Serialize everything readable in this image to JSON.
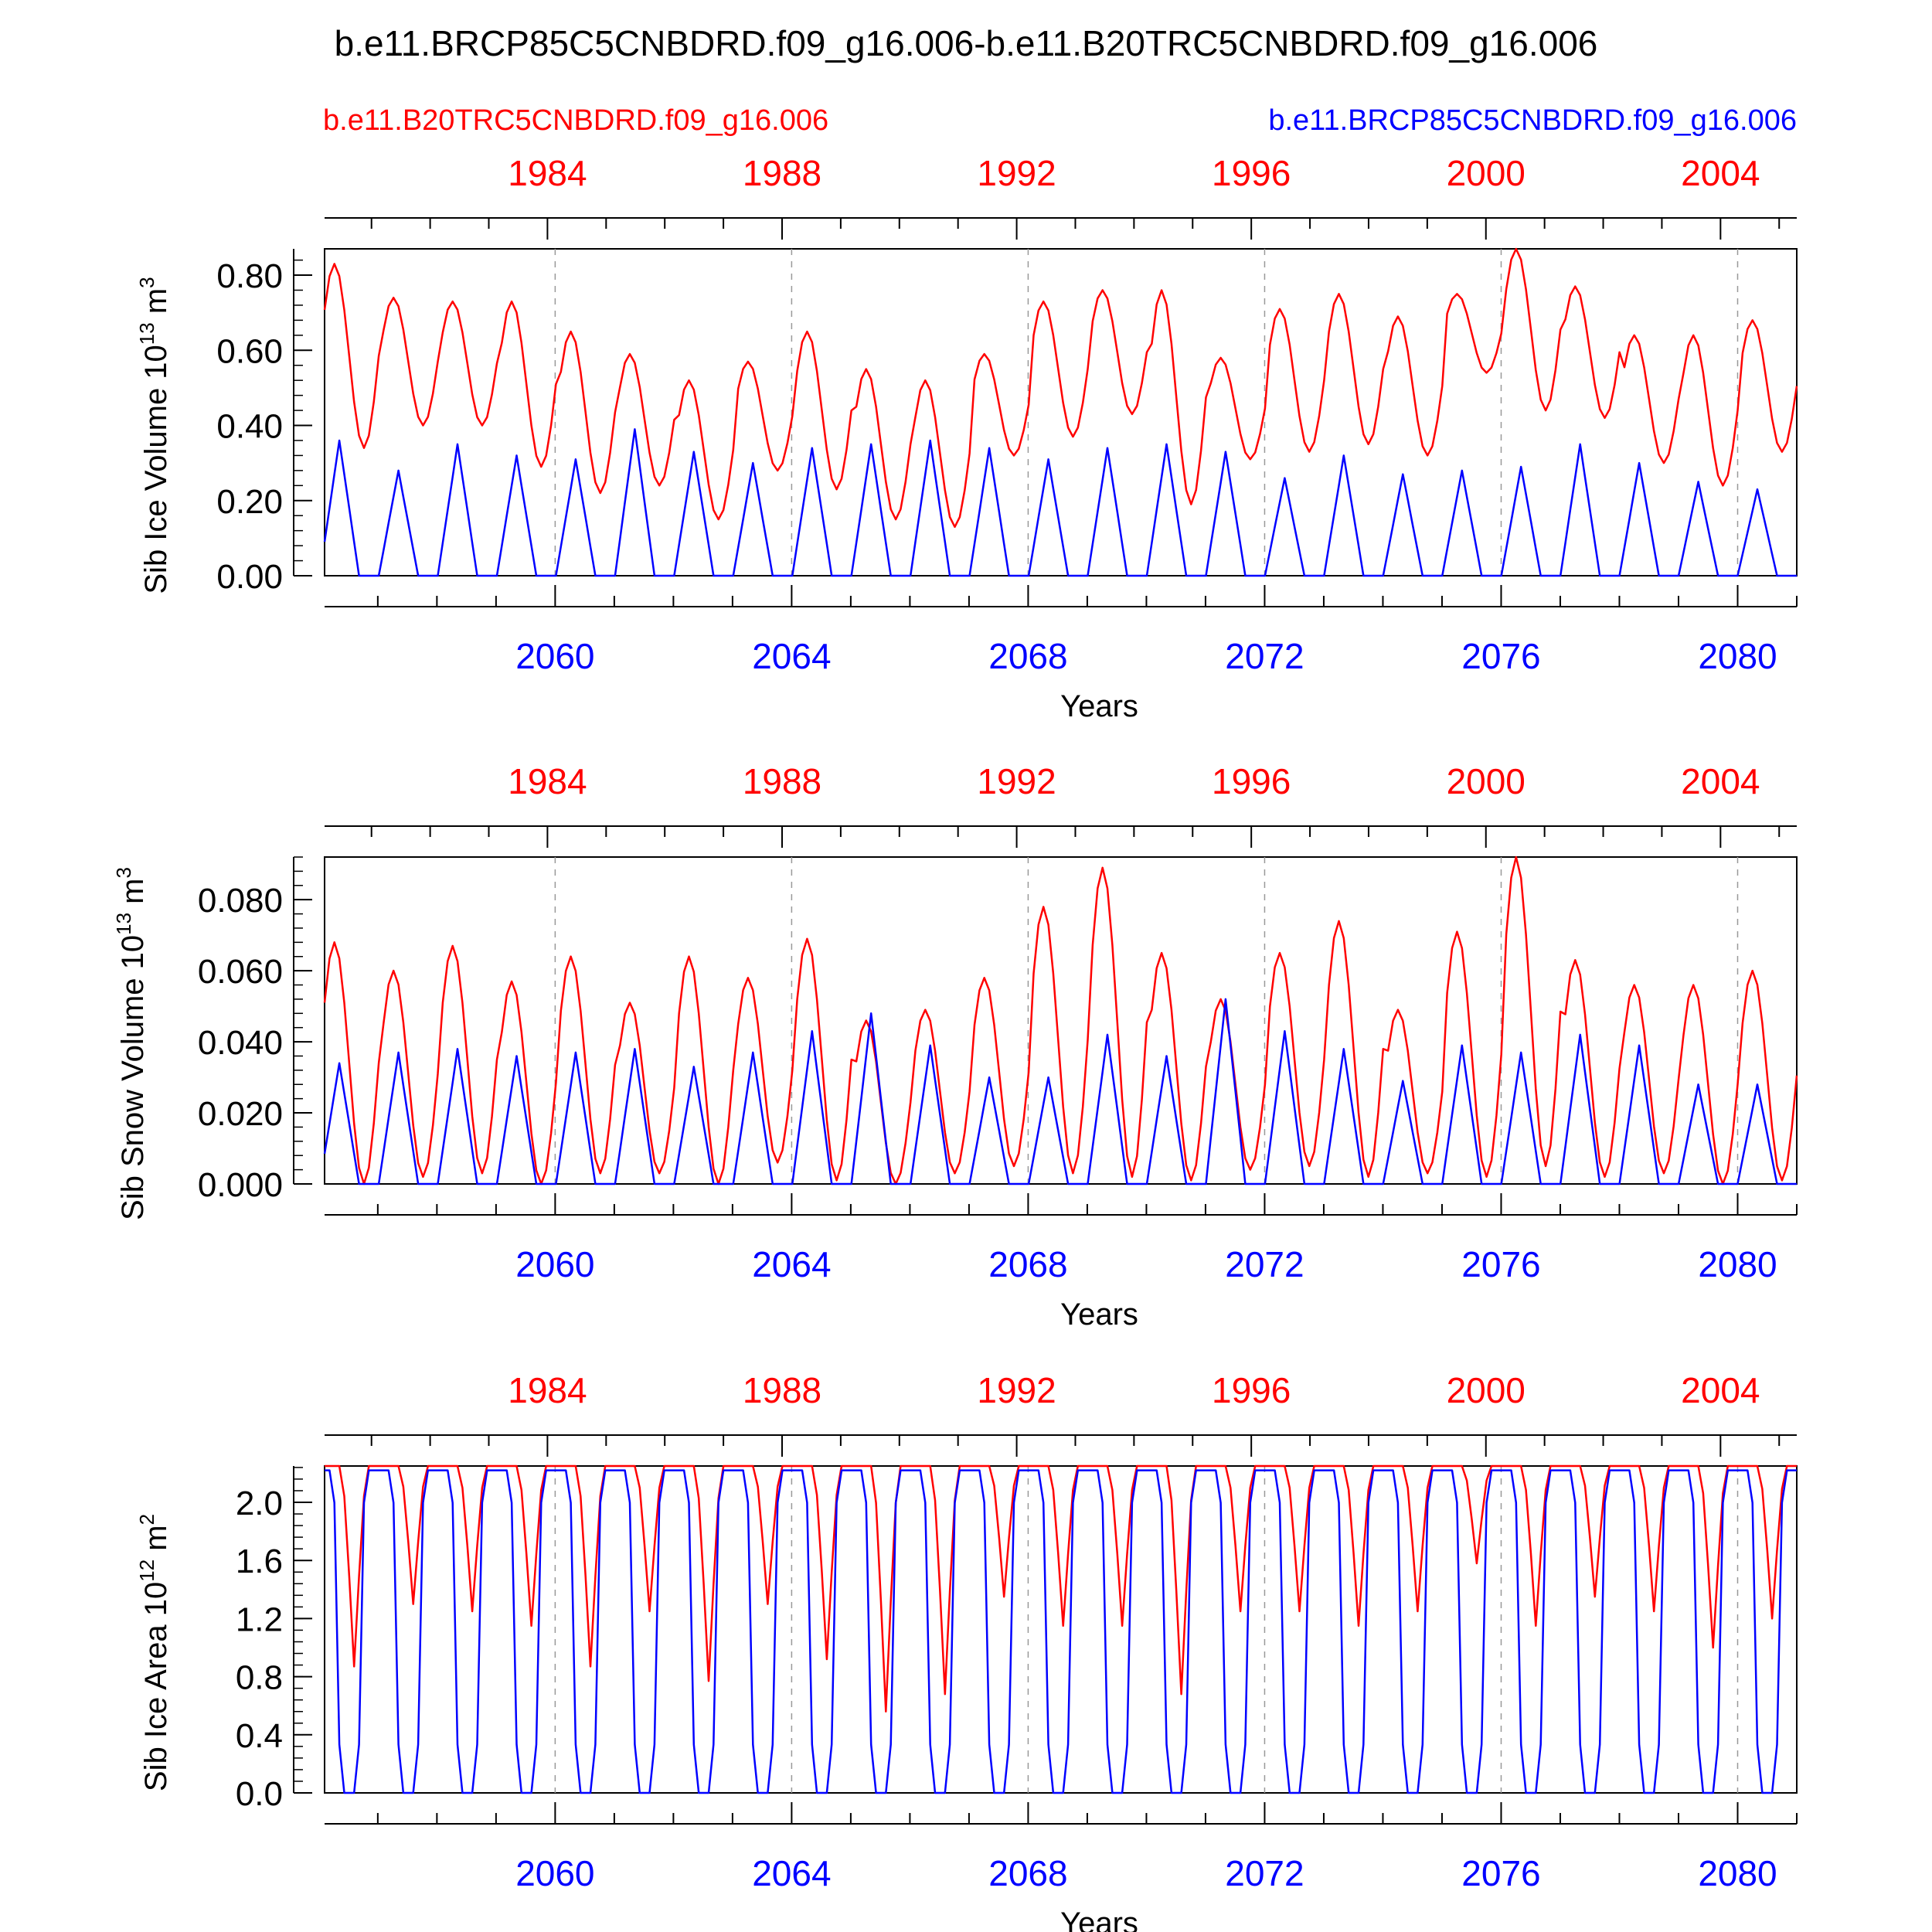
{
  "title": "b.e11.BRCP85C5CNBDRD.f09_g16.006-b.e11.B20TRC5CNBDRD.f09_g16.006",
  "legend": {
    "red_label": "b.e11.B20TRC5CNBDRD.f09_g16.006",
    "blue_label": "b.e11.BRCP85C5CNBDRD.f09_g16.006"
  },
  "colors": {
    "red": "#ff0000",
    "blue": "#0000ff",
    "axis": "#000000",
    "grid": "#999999"
  },
  "chart_data": [
    {
      "type": "line",
      "ylabel_main": "Sib Ice Volume 10",
      "ylabel_exp": "13",
      "ylabel_unit": " m",
      "ylabel_unit_exp": "3",
      "xlabel": "Years",
      "ylim": [
        0,
        0.87
      ],
      "yticks": [
        "0.00",
        "0.20",
        "0.40",
        "0.60",
        "0.80"
      ],
      "ytick_values": [
        0,
        0.2,
        0.4,
        0.6,
        0.8
      ],
      "top_axis": {
        "range": [
          1980.2,
          2005.3
        ],
        "labels": [
          "1984",
          "1988",
          "1992",
          "1996",
          "2000",
          "2004"
        ],
        "values": [
          1984,
          1988,
          1992,
          1996,
          2000,
          2004
        ]
      },
      "bottom_axis": {
        "range": [
          2056.1,
          2081.0
        ],
        "labels": [
          "2060",
          "2064",
          "2068",
          "2072",
          "2076",
          "2080"
        ],
        "values": [
          2060,
          2064,
          2068,
          2072,
          2076,
          2080
        ]
      },
      "series": [
        {
          "name": "b.e11.B20TRC5CNBDRD.f09_g16.006",
          "color": "red",
          "annual_max": [
            0.83,
            0.74,
            0.73,
            0.73,
            0.65,
            0.59,
            0.52,
            0.57,
            0.65,
            0.55,
            0.52,
            0.59,
            0.73,
            0.76,
            0.76,
            0.58,
            0.71,
            0.75,
            0.69,
            0.75,
            0.87,
            0.77,
            0.64,
            0.64,
            0.68
          ],
          "annual_min": [
            0.34,
            0.4,
            0.4,
            0.29,
            0.22,
            0.24,
            0.15,
            0.28,
            0.23,
            0.15,
            0.13,
            0.32,
            0.37,
            0.43,
            0.19,
            0.31,
            0.33,
            0.35,
            0.32,
            0.54,
            0.44,
            0.42,
            0.3,
            0.24,
            0.33
          ]
        },
        {
          "name": "b.e11.BRCP85C5CNBDRD.f09_g16.006",
          "color": "blue",
          "annual_max": [
            0.36,
            0.28,
            0.35,
            0.32,
            0.31,
            0.39,
            0.33,
            0.3,
            0.34,
            0.35,
            0.36,
            0.34,
            0.31,
            0.34,
            0.35,
            0.33,
            0.26,
            0.32,
            0.27,
            0.28,
            0.29,
            0.35,
            0.3,
            0.25,
            0.23
          ],
          "annual_min": [
            0,
            0,
            0,
            0,
            0,
            0,
            0,
            0,
            0,
            0,
            0,
            0,
            0,
            0,
            0,
            0,
            0,
            0,
            0,
            0,
            0,
            0,
            0,
            0,
            0
          ]
        }
      ]
    },
    {
      "type": "line",
      "ylabel_main": "Sib Snow Volume 10",
      "ylabel_exp": "13",
      "ylabel_unit": " m",
      "ylabel_unit_exp": "3",
      "xlabel": "Years",
      "ylim": [
        0,
        0.092
      ],
      "yticks": [
        "0.000",
        "0.020",
        "0.040",
        "0.060",
        "0.080"
      ],
      "ytick_values": [
        0,
        0.02,
        0.04,
        0.06,
        0.08
      ],
      "top_axis": {
        "range": [
          1980.2,
          2005.3
        ],
        "labels": [
          "1984",
          "1988",
          "1992",
          "1996",
          "2000",
          "2004"
        ],
        "values": [
          1984,
          1988,
          1992,
          1996,
          2000,
          2004
        ]
      },
      "bottom_axis": {
        "range": [
          2056.1,
          2081.0
        ],
        "labels": [
          "2060",
          "2064",
          "2068",
          "2072",
          "2076",
          "2080"
        ],
        "values": [
          2060,
          2064,
          2068,
          2072,
          2076,
          2080
        ]
      },
      "series": [
        {
          "name": "b.e11.B20TRC5CNBDRD.f09_g16.006",
          "color": "red",
          "annual_max": [
            0.068,
            0.06,
            0.067,
            0.057,
            0.064,
            0.051,
            0.064,
            0.058,
            0.069,
            0.046,
            0.049,
            0.058,
            0.078,
            0.089,
            0.065,
            0.052,
            0.065,
            0.074,
            0.049,
            0.071,
            0.092,
            0.063,
            0.056,
            0.056,
            0.06
          ],
          "annual_min": [
            0.0,
            0.002,
            0.003,
            0.0,
            0.003,
            0.003,
            0.0,
            0.006,
            0.001,
            0.0,
            0.003,
            0.005,
            0.003,
            0.002,
            0.001,
            0.004,
            0.005,
            0.002,
            0.003,
            0.002,
            0.005,
            0.002,
            0.003,
            0.0,
            0.001
          ]
        },
        {
          "name": "b.e11.BRCP85C5CNBDRD.f09_g16.006",
          "color": "blue",
          "annual_max": [
            0.034,
            0.037,
            0.038,
            0.036,
            0.037,
            0.038,
            0.033,
            0.037,
            0.043,
            0.048,
            0.039,
            0.03,
            0.03,
            0.042,
            0.036,
            0.052,
            0.043,
            0.038,
            0.029,
            0.039,
            0.037,
            0.042,
            0.039,
            0.028,
            0.028
          ],
          "annual_min": [
            0,
            0,
            0,
            0,
            0,
            0,
            0,
            0,
            0,
            0,
            0,
            0,
            0,
            0,
            0,
            0,
            0,
            0,
            0,
            0,
            0,
            0,
            0,
            0,
            0
          ]
        }
      ]
    },
    {
      "type": "line",
      "ylabel_main": "Sib Ice Area 10",
      "ylabel_exp": "12",
      "ylabel_unit": " m",
      "ylabel_unit_exp": "2",
      "xlabel": "Years",
      "ylim": [
        0,
        2.25
      ],
      "yticks": [
        "0.0",
        "0.4",
        "0.8",
        "1.2",
        "1.6",
        "2.0"
      ],
      "ytick_values": [
        0,
        0.4,
        0.8,
        1.2,
        1.6,
        2.0
      ],
      "top_axis": {
        "range": [
          1980.2,
          2005.3
        ],
        "labels": [
          "1984",
          "1988",
          "1992",
          "1996",
          "2000",
          "2004"
        ],
        "values": [
          1984,
          1988,
          1992,
          1996,
          2000,
          2004
        ]
      },
      "bottom_axis": {
        "range": [
          2056.1,
          2081.0
        ],
        "labels": [
          "2060",
          "2064",
          "2068",
          "2072",
          "2076",
          "2080"
        ],
        "values": [
          2060,
          2064,
          2068,
          2072,
          2076,
          2080
        ]
      },
      "series": [
        {
          "name": "b.e11.B20TRC5CNBDRD.f09_g16.006",
          "color": "red",
          "annual_max": [
            2.25,
            2.25,
            2.25,
            2.25,
            2.25,
            2.25,
            2.25,
            2.25,
            2.25,
            2.25,
            2.25,
            2.25,
            2.25,
            2.25,
            2.25,
            2.25,
            2.25,
            2.25,
            2.25,
            2.25,
            2.25,
            2.25,
            2.25,
            2.25,
            2.25
          ],
          "annual_min": [
            0.87,
            1.3,
            1.25,
            1.15,
            0.87,
            1.25,
            0.77,
            1.3,
            0.92,
            0.56,
            0.68,
            1.35,
            1.15,
            1.15,
            0.68,
            1.25,
            1.25,
            1.15,
            1.25,
            1.58,
            1.15,
            1.35,
            1.25,
            1.0,
            1.2
          ]
        },
        {
          "name": "b.e11.BRCP85C5CNBDRD.f09_g16.006",
          "color": "blue",
          "annual_max": [
            2.22,
            2.22,
            2.22,
            2.22,
            2.22,
            2.22,
            2.22,
            2.22,
            2.22,
            2.22,
            2.22,
            2.22,
            2.22,
            2.22,
            2.22,
            2.22,
            2.22,
            2.22,
            2.22,
            2.22,
            2.22,
            2.22,
            2.22,
            2.22,
            2.22
          ],
          "annual_min": [
            0,
            0,
            0,
            0,
            0,
            0,
            0,
            0,
            0,
            0,
            0,
            0,
            0,
            0,
            0,
            0,
            0,
            0,
            0,
            0,
            0,
            0,
            0,
            0,
            0
          ]
        }
      ]
    }
  ]
}
